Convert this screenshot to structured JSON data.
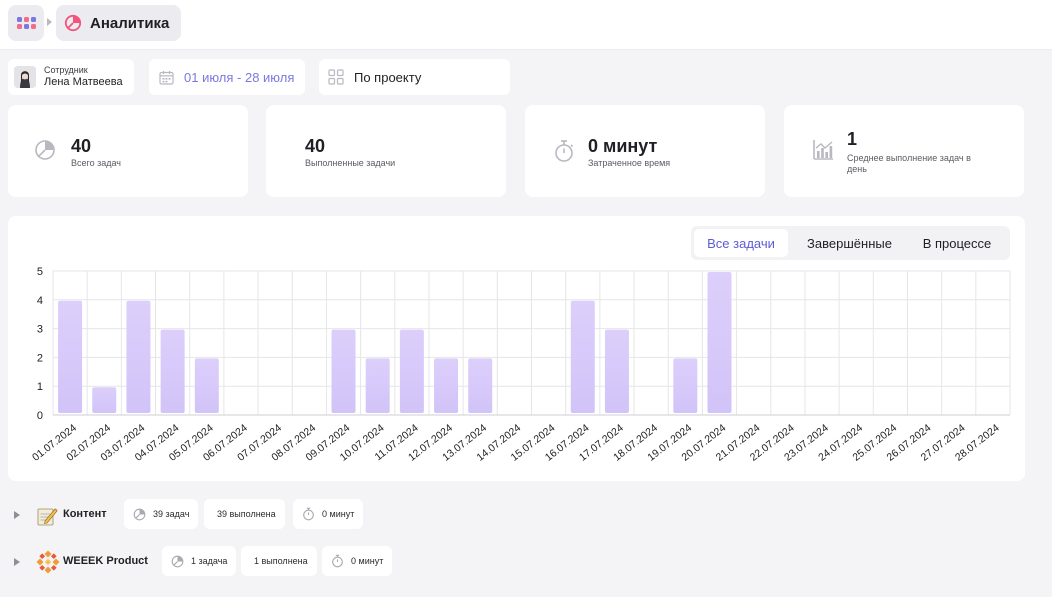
{
  "header": {
    "title": "Аналитика"
  },
  "filters": {
    "employee_caption": "Сотрудник",
    "employee_name": "Лена Матвеева",
    "date_range": "01 июля - 28 июля",
    "group_by": "По проекту"
  },
  "stats": [
    {
      "value": "40",
      "label": "Всего задач",
      "icon": "pie-chart-icon"
    },
    {
      "value": "40",
      "label": "Выполненные задачи",
      "icon": "check-icon"
    },
    {
      "value": "0 минут",
      "label": "Затраченное время",
      "icon": "stopwatch-icon"
    },
    {
      "value": "1",
      "label": "Среднее выполнение задач в день",
      "icon": "bar-chart-icon"
    }
  ],
  "tabs": [
    {
      "label": "Все задачи",
      "active": true
    },
    {
      "label": "Завершённые",
      "active": false
    },
    {
      "label": "В процессе",
      "active": false
    }
  ],
  "colors": {
    "accent": "#5b5bd6",
    "bar_top": "#dccffb",
    "bar_bottom": "#d2c3f8"
  },
  "chart_data": {
    "type": "bar",
    "categories": [
      "01.07.2024",
      "02.07.2024",
      "03.07.2024",
      "04.07.2024",
      "05.07.2024",
      "06.07.2024",
      "07.07.2024",
      "08.07.2024",
      "09.07.2024",
      "10.07.2024",
      "11.07.2024",
      "12.07.2024",
      "13.07.2024",
      "14.07.2024",
      "15.07.2024",
      "16.07.2024",
      "17.07.2024",
      "18.07.2024",
      "19.07.2024",
      "20.07.2024",
      "21.07.2024",
      "22.07.2024",
      "23.07.2024",
      "24.07.2024",
      "25.07.2024",
      "26.07.2024",
      "27.07.2024",
      "28.07.2024"
    ],
    "values": [
      4,
      1,
      4,
      3,
      2,
      0,
      0,
      0,
      3,
      2,
      3,
      2,
      2,
      0,
      0,
      4,
      3,
      0,
      2,
      5,
      0,
      0,
      0,
      0,
      0,
      0,
      0,
      0
    ],
    "yticks": [
      0,
      1,
      2,
      3,
      4,
      5
    ],
    "ylim": [
      0,
      5
    ],
    "grid": true,
    "title": "",
    "xlabel": "",
    "ylabel": ""
  },
  "projects": [
    {
      "name": "Контент",
      "tasks": "39 задач",
      "done": "39 выполнена",
      "time": "0 минут"
    },
    {
      "name": "WEEEK Product",
      "tasks": "1 задача",
      "done": "1 выполнена",
      "time": "0 минут"
    }
  ]
}
